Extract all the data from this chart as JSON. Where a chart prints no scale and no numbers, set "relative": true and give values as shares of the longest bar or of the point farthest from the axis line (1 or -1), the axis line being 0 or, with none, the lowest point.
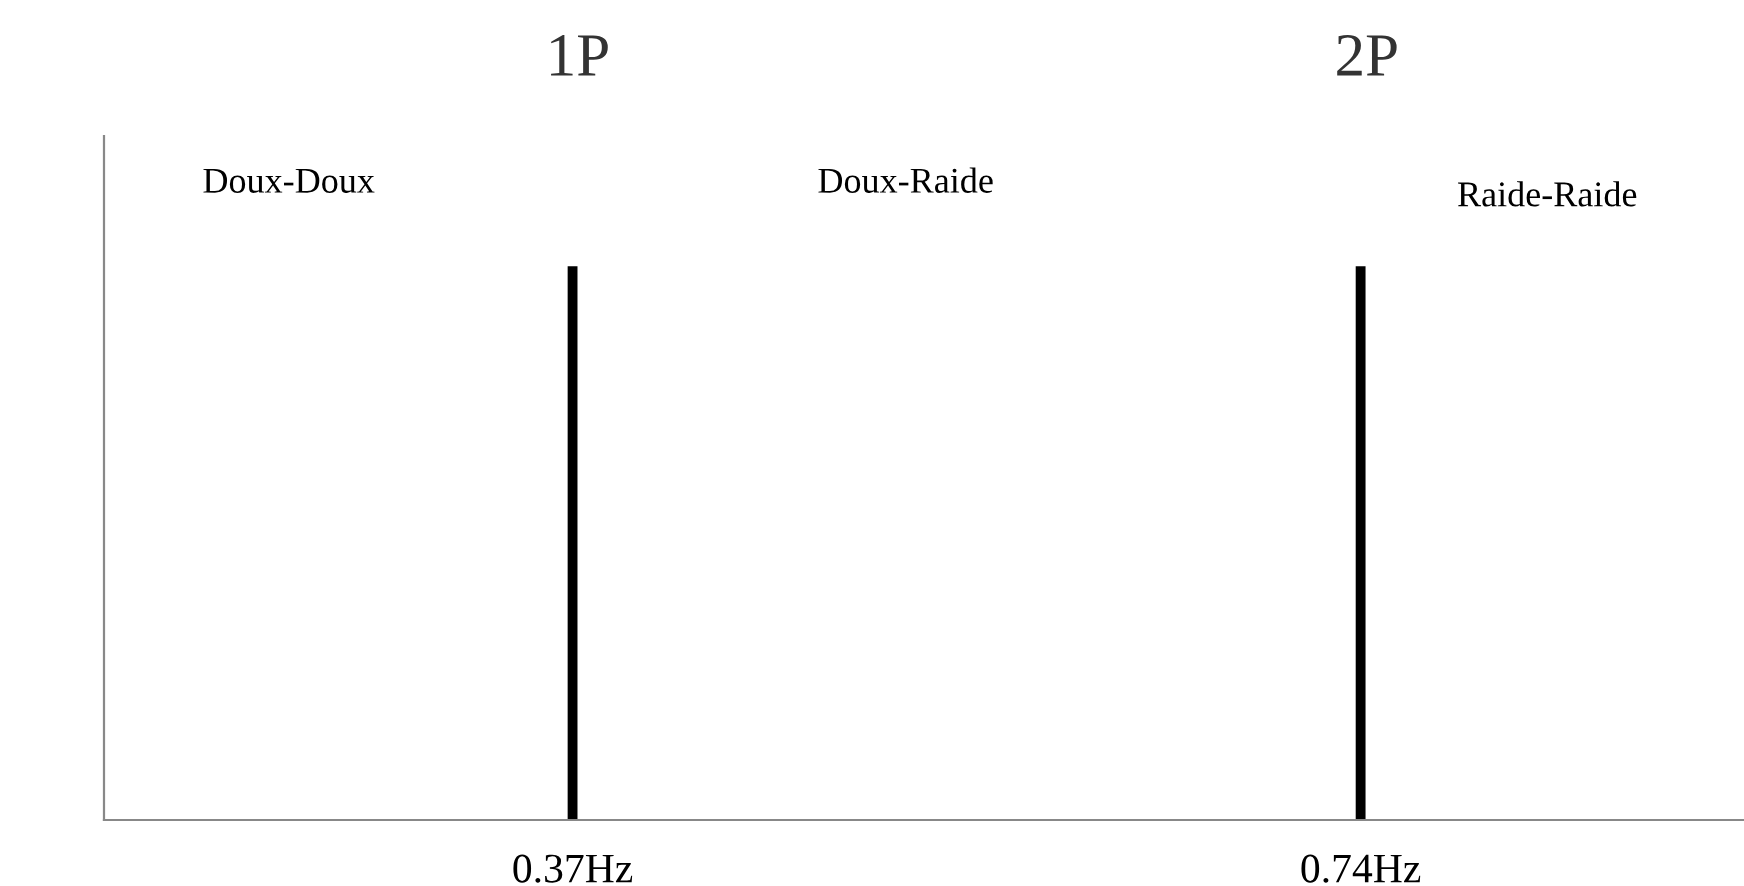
{
  "chart_data": {
    "type": "bar",
    "relative": true,
    "x": [
      0.37,
      0.74
    ],
    "values": [
      1,
      1
    ],
    "color": "#000000",
    "xlim": [
      0.15,
      0.92
    ],
    "xticks": [
      {
        "value": 0.37,
        "label": "0.37Hz"
      },
      {
        "value": 0.74,
        "label": "0.74Hz"
      }
    ],
    "grid": false,
    "legend": false,
    "annotations": [
      "1P",
      "2P",
      "Doux-Doux",
      "Doux-Raide",
      "Raide-Raide"
    ]
  }
}
